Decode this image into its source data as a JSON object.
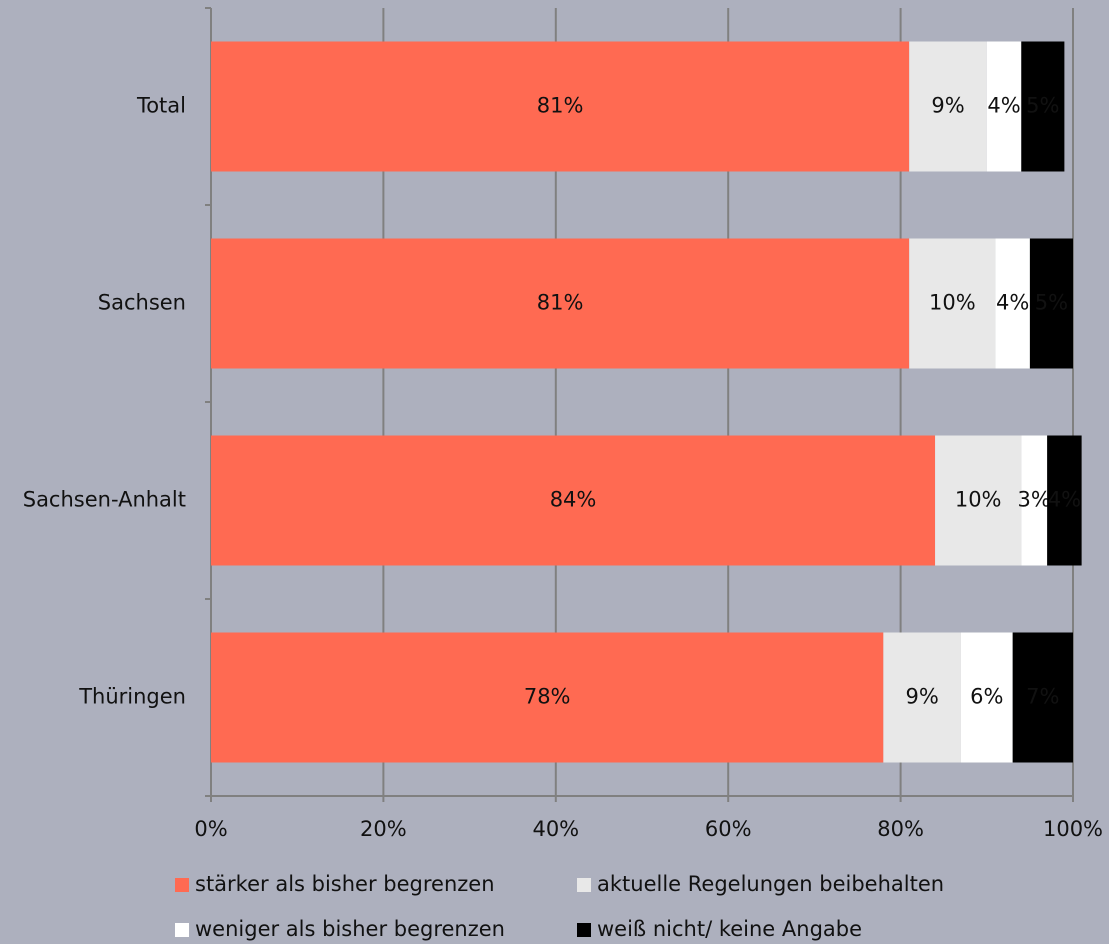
{
  "chart_data": {
    "type": "stacked_bar_horizontal",
    "categories": [
      "Total",
      "Sachsen",
      "Sachsen-Anhalt",
      "Thüringen"
    ],
    "series": [
      {
        "name": "stärker als bisher begrenzen",
        "color": "#ff6a52",
        "values": [
          81,
          81,
          84,
          78
        ],
        "value_labels": [
          "81%",
          "81%",
          "84%",
          "78%"
        ]
      },
      {
        "name": "aktuelle Regelungen beibehalten",
        "color": "#e8e8e8",
        "values": [
          9,
          10,
          10,
          9
        ],
        "value_labels": [
          "9%",
          "10%",
          "10%",
          "9%"
        ]
      },
      {
        "name": "weniger als bisher begrenzen",
        "color": "#ffffff",
        "values": [
          4,
          4,
          3,
          6
        ],
        "value_labels": [
          "4%",
          "4%",
          "3%",
          "6%"
        ]
      },
      {
        "name": "weiß nicht/ keine Angabe",
        "color": "#000000",
        "values": [
          5,
          5,
          4,
          7
        ],
        "value_labels": [
          "5%",
          "5%",
          "4%",
          "7%"
        ]
      }
    ],
    "xlim": [
      0,
      100
    ],
    "xticks": [
      {
        "value": 0,
        "label": "0%"
      },
      {
        "value": 20,
        "label": "20%"
      },
      {
        "value": 40,
        "label": "40%"
      },
      {
        "value": 60,
        "label": "60%"
      },
      {
        "value": 80,
        "label": "80%"
      },
      {
        "value": 100,
        "label": "100%"
      }
    ],
    "grid": true
  }
}
